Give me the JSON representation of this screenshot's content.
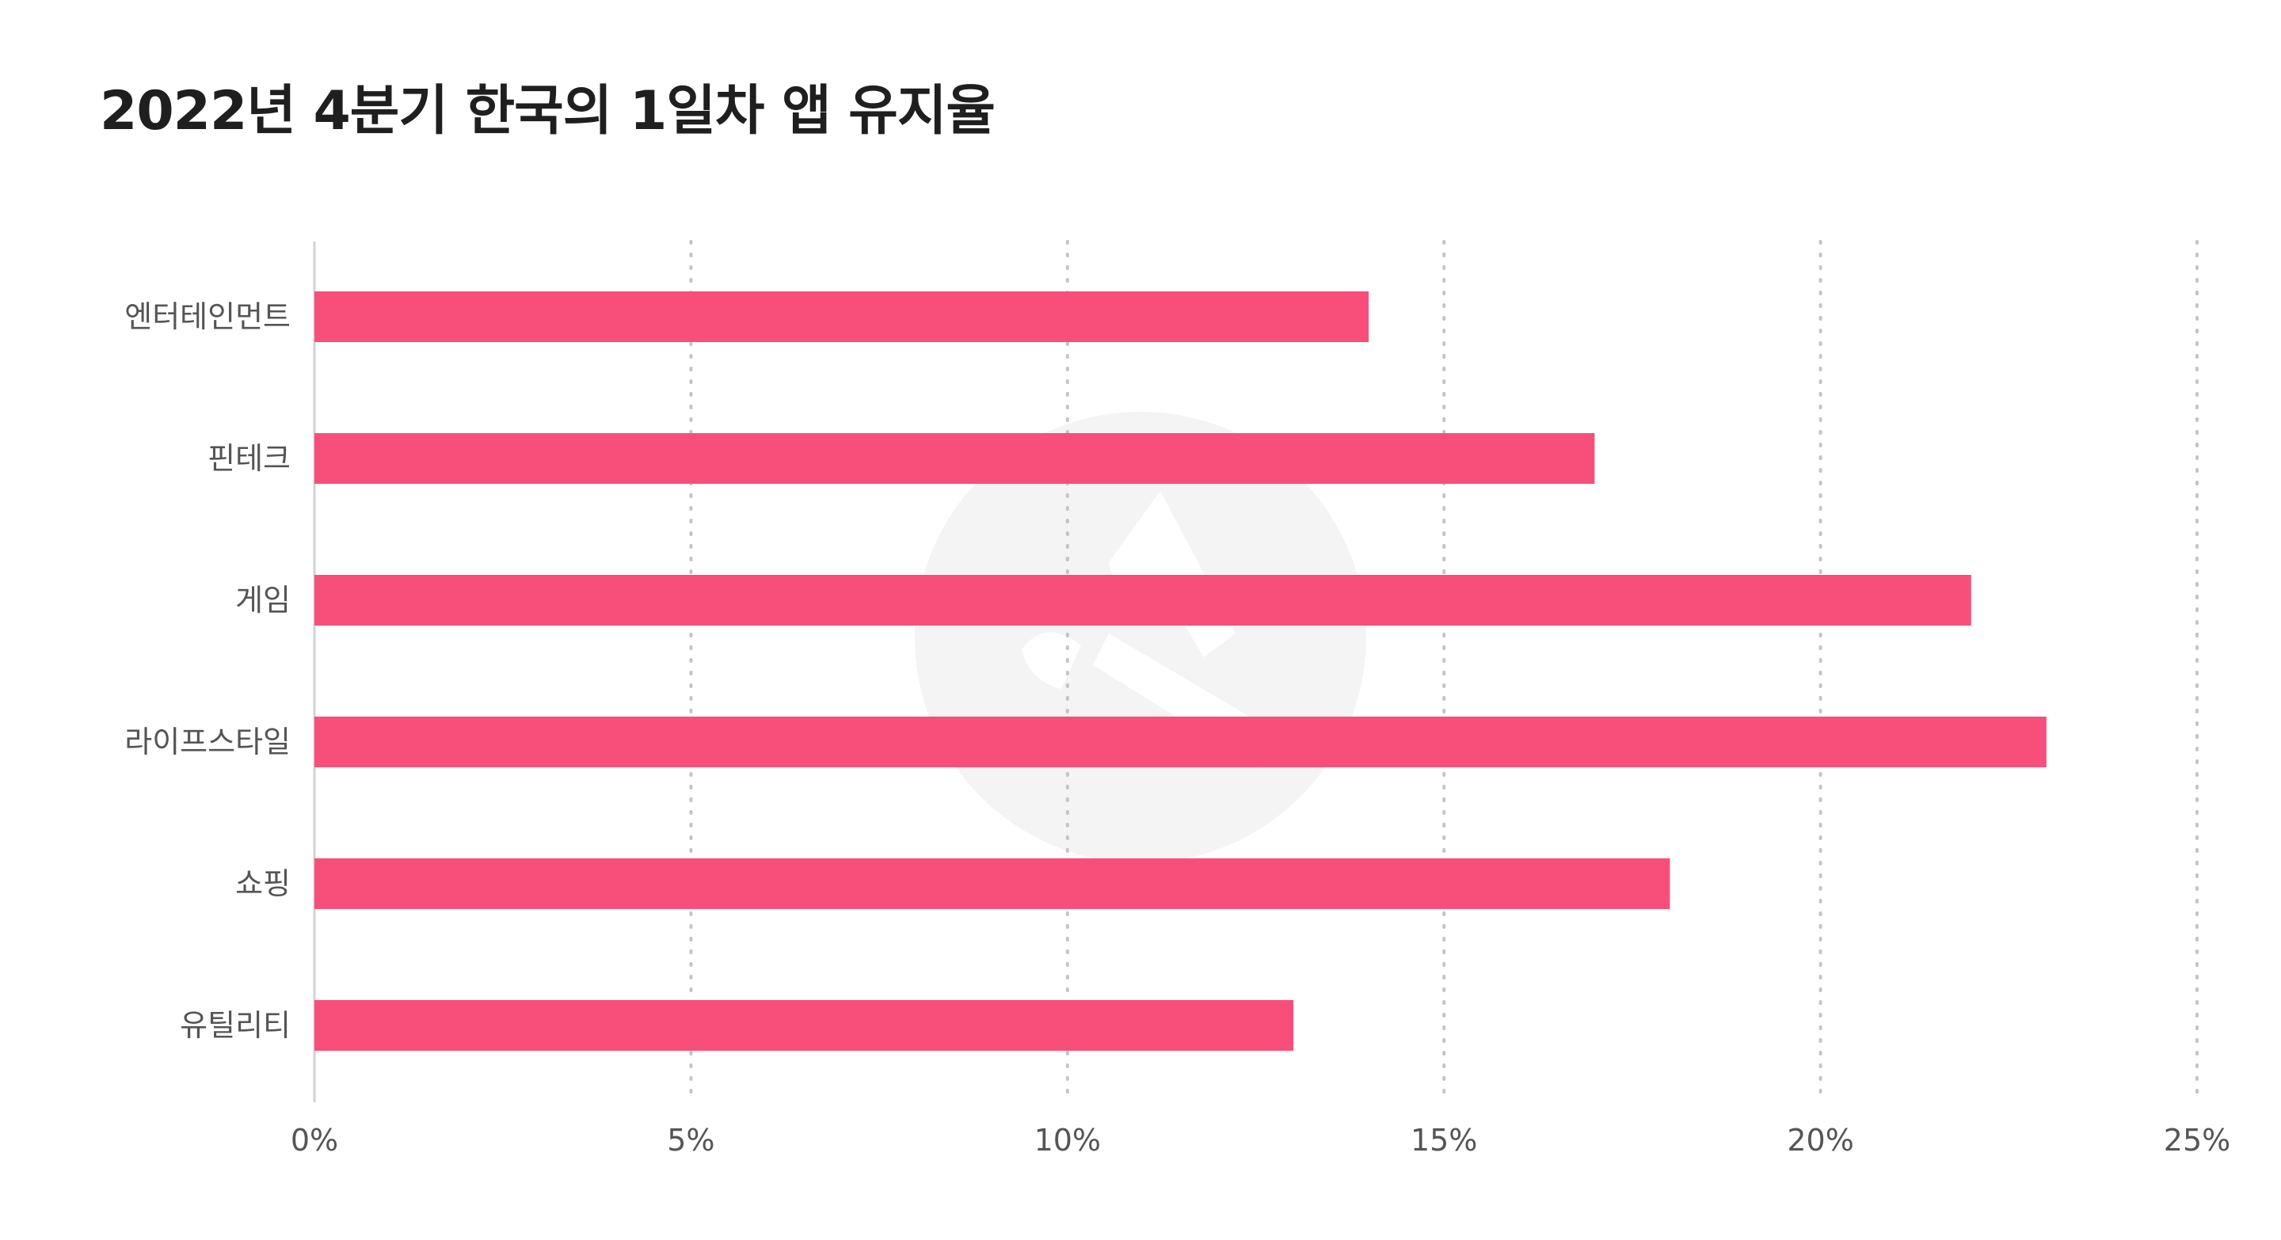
{
  "title": "2022년 4분기 한국의 1일차 앱 유지율",
  "colors": {
    "bar": "#F74F7A",
    "axis": "#d2d2d2",
    "grid": "#c4c4c4",
    "label": "#555555",
    "watermark": "#f4f4f4"
  },
  "icons": [
    "watermark-logo-icon"
  ],
  "chart_data": {
    "type": "bar",
    "orientation": "horizontal",
    "title": "2022년 4분기 한국의 1일차 앱 유지율",
    "xlabel": "",
    "ylabel": "",
    "categories": [
      "엔터테인먼트",
      "핀테크",
      "게임",
      "라이프스타일",
      "쇼핑",
      "유틸리티"
    ],
    "series": [
      {
        "values": [
          14,
          17,
          22,
          23,
          18,
          13
        ]
      }
    ],
    "xlim": [
      0,
      25
    ],
    "xticks": [
      0,
      5,
      10,
      15,
      20,
      25
    ],
    "xtick_labels": [
      "0%",
      "5%",
      "10%",
      "15%",
      "20%",
      "25%"
    ],
    "grid": "vertical-dotted",
    "legend": "none"
  }
}
